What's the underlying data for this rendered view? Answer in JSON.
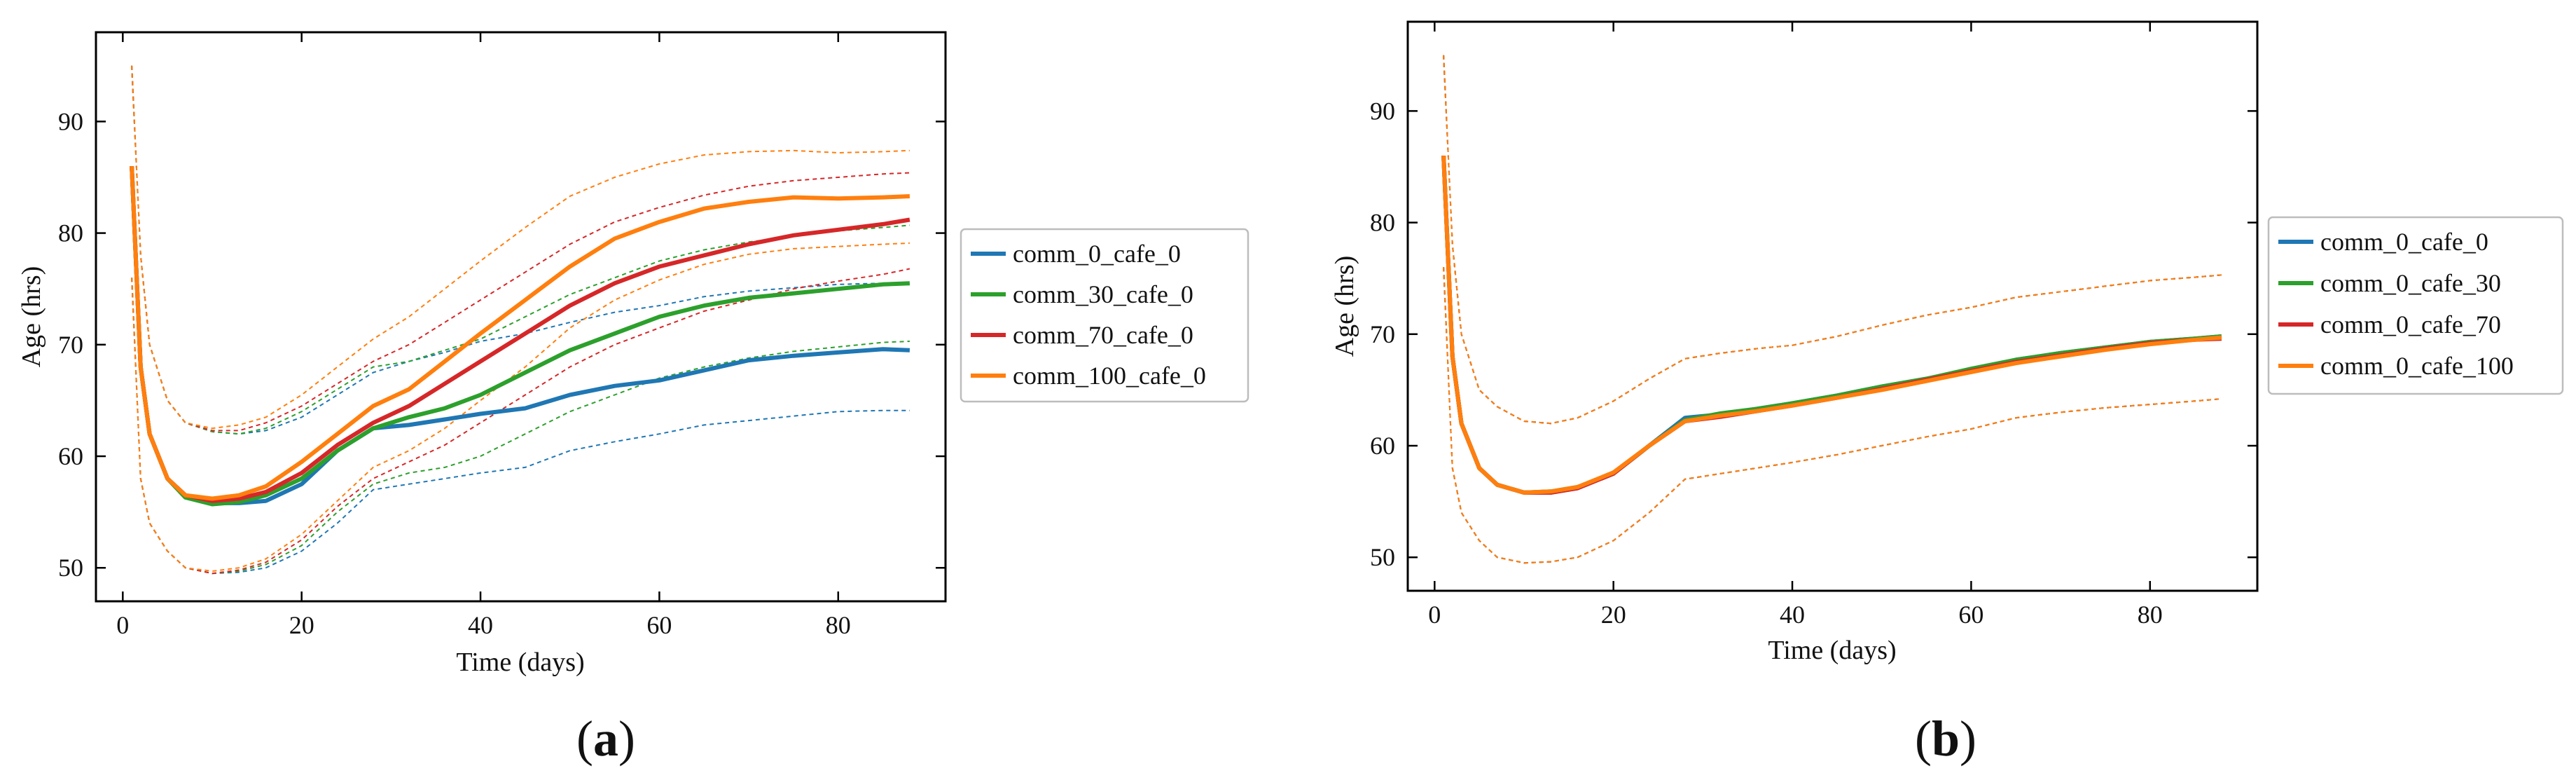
{
  "chart_data": [
    {
      "type": "line",
      "panel_label": "a",
      "xlabel": "Time (days)",
      "ylabel": "Age (hrs)",
      "xlim": [
        -3,
        92
      ],
      "ylim": [
        47,
        98
      ],
      "xticks": [
        0,
        20,
        40,
        60,
        80
      ],
      "yticks": [
        50,
        60,
        70,
        80,
        90
      ],
      "xtick_labels": [
        "0",
        "20",
        "40",
        "60",
        "80"
      ],
      "ytick_labels": [
        "50",
        "60",
        "70",
        "80",
        "90"
      ],
      "legend_position": "outside-right",
      "band_style": "dashed",
      "series": [
        {
          "name": "comm_0_cafe_0",
          "color": "#1f77b4",
          "x": [
            1,
            2,
            3,
            5,
            7,
            10,
            13,
            16,
            20,
            24,
            28,
            32,
            36,
            40,
            45,
            50,
            55,
            60,
            65,
            70,
            75,
            80,
            85,
            88
          ],
          "mean": [
            86,
            68,
            62,
            58,
            56.5,
            55.8,
            55.8,
            56,
            57.5,
            60.5,
            62.5,
            62.8,
            63.3,
            63.8,
            64.3,
            65.5,
            66.3,
            66.8,
            67.7,
            68.6,
            69,
            69.3,
            69.6,
            69.5
          ],
          "upper": [
            95,
            78,
            70,
            65,
            63,
            62.2,
            62,
            62.3,
            63.5,
            65.5,
            67.5,
            68.5,
            69.3,
            70.3,
            71,
            72,
            72.9,
            73.5,
            74.3,
            74.8,
            75.1,
            75.4,
            75.5,
            75.4
          ],
          "lower": [
            76,
            58,
            54,
            51.5,
            50,
            49.5,
            49.6,
            50,
            51.5,
            54,
            57,
            57.5,
            58,
            58.5,
            59,
            60.5,
            61.3,
            62,
            62.8,
            63.2,
            63.6,
            64,
            64.1,
            64.1
          ]
        },
        {
          "name": "comm_30_cafe_0",
          "color": "#2ca02c",
          "x": [
            1,
            2,
            3,
            5,
            7,
            10,
            13,
            16,
            20,
            24,
            28,
            32,
            36,
            40,
            45,
            50,
            55,
            60,
            65,
            70,
            75,
            80,
            85,
            88
          ],
          "mean": [
            86,
            68,
            62,
            58,
            56.3,
            55.7,
            55.9,
            56.5,
            58,
            60.5,
            62.5,
            63.5,
            64.3,
            65.5,
            67.5,
            69.5,
            71,
            72.5,
            73.5,
            74.2,
            74.6,
            75,
            75.4,
            75.5
          ],
          "upper": [
            95,
            78,
            70,
            65,
            63,
            62.2,
            62,
            62.5,
            64,
            66,
            68,
            68.5,
            69.5,
            70.5,
            72.5,
            74.5,
            76,
            77.5,
            78.5,
            79.2,
            79.7,
            80.2,
            80.5,
            80.7
          ],
          "lower": [
            76,
            58,
            54,
            51.5,
            50,
            49.5,
            49.7,
            50.3,
            52,
            55,
            57.5,
            58.5,
            59,
            60,
            62,
            64,
            65.5,
            67,
            68,
            68.8,
            69.4,
            69.8,
            70.2,
            70.3
          ]
        },
        {
          "name": "comm_70_cafe_0",
          "color": "#d62728",
          "x": [
            1,
            2,
            3,
            5,
            7,
            10,
            13,
            16,
            20,
            24,
            28,
            32,
            36,
            40,
            45,
            50,
            55,
            60,
            65,
            70,
            75,
            80,
            85,
            88
          ],
          "mean": [
            86,
            68,
            62,
            58,
            56.5,
            56,
            56.2,
            56.8,
            58.5,
            61,
            63,
            64.5,
            66.5,
            68.5,
            71,
            73.5,
            75.5,
            77,
            78,
            79,
            79.8,
            80.3,
            80.8,
            81.2
          ],
          "upper": [
            95,
            78,
            70,
            65,
            63,
            62.3,
            62.3,
            63,
            64.5,
            66.5,
            68.5,
            70,
            72,
            74,
            76.5,
            79,
            81,
            82.3,
            83.4,
            84.2,
            84.7,
            85,
            85.3,
            85.4
          ],
          "lower": [
            76,
            58,
            54,
            51.5,
            50,
            49.5,
            49.8,
            50.5,
            52.5,
            55.5,
            58,
            59.5,
            61,
            63,
            65.5,
            68,
            70,
            71.5,
            73,
            74,
            75,
            75.7,
            76.3,
            76.8
          ]
        },
        {
          "name": "comm_100_cafe_0",
          "color": "#ff7f0e",
          "x": [
            1,
            2,
            3,
            5,
            7,
            10,
            13,
            16,
            20,
            24,
            28,
            32,
            36,
            40,
            45,
            50,
            55,
            60,
            65,
            70,
            75,
            80,
            85,
            88
          ],
          "mean": [
            86,
            68,
            62,
            58,
            56.5,
            56.2,
            56.5,
            57.3,
            59.5,
            62,
            64.5,
            66,
            68.5,
            71,
            74,
            77,
            79.5,
            81,
            82.2,
            82.8,
            83.2,
            83.1,
            83.2,
            83.3
          ],
          "upper": [
            95,
            78,
            70,
            65,
            63,
            62.5,
            62.8,
            63.5,
            65.5,
            68,
            70.5,
            72.5,
            75,
            77.5,
            80.5,
            83.3,
            85,
            86.2,
            87,
            87.3,
            87.4,
            87.2,
            87.3,
            87.4
          ],
          "lower": [
            76,
            58,
            54,
            51.5,
            50,
            49.7,
            50,
            50.8,
            53,
            56,
            59,
            60.5,
            62.5,
            65,
            68,
            71.5,
            74,
            75.8,
            77.2,
            78.1,
            78.6,
            78.8,
            79,
            79.1
          ]
        }
      ]
    },
    {
      "type": "line",
      "panel_label": "b",
      "xlabel": "Time (days)",
      "ylabel": "Age (hrs)",
      "xlim": [
        -3,
        92
      ],
      "ylim": [
        47,
        98
      ],
      "xticks": [
        0,
        20,
        40,
        60,
        80
      ],
      "yticks": [
        50,
        60,
        70,
        80,
        90
      ],
      "xtick_labels": [
        "0",
        "20",
        "40",
        "60",
        "80"
      ],
      "ytick_labels": [
        "50",
        "60",
        "70",
        "80",
        "90"
      ],
      "legend_position": "outside-right",
      "band_style": "dashed",
      "series": [
        {
          "name": "comm_0_cafe_0",
          "color": "#1f77b4",
          "x": [
            1,
            2,
            3,
            5,
            7,
            10,
            13,
            16,
            20,
            24,
            28,
            32,
            36,
            40,
            45,
            50,
            55,
            60,
            65,
            70,
            75,
            80,
            85,
            88
          ],
          "mean": [
            86,
            68,
            62,
            58,
            56.5,
            55.8,
            55.8,
            56.2,
            57.5,
            60,
            62.5,
            62.8,
            63.3,
            63.8,
            64.5,
            65.3,
            66,
            66.8,
            67.7,
            68.3,
            68.8,
            69.3,
            69.6,
            69.8
          ],
          "upper": [
            95,
            78,
            70,
            65,
            63.5,
            62.2,
            62,
            62.5,
            64,
            66,
            67.8,
            68.3,
            68.7,
            69,
            69.8,
            70.8,
            71.7,
            72.4,
            73.3,
            73.8,
            74.3,
            74.8,
            75.1,
            75.3
          ],
          "lower": [
            76,
            58,
            54,
            51.5,
            50,
            49.5,
            49.6,
            50,
            51.5,
            54,
            57,
            57.5,
            58,
            58.5,
            59.2,
            60,
            60.8,
            61.5,
            62.5,
            63,
            63.4,
            63.7,
            64,
            64.2
          ]
        },
        {
          "name": "comm_0_cafe_30",
          "color": "#2ca02c",
          "x": [
            1,
            2,
            3,
            5,
            7,
            10,
            13,
            16,
            20,
            24,
            28,
            32,
            36,
            40,
            45,
            50,
            55,
            60,
            65,
            70,
            75,
            80,
            85,
            88
          ],
          "mean": [
            86,
            68,
            62,
            58,
            56.5,
            55.8,
            55.9,
            56.3,
            57.5,
            60,
            62.3,
            62.9,
            63.3,
            63.8,
            64.5,
            65.3,
            66,
            66.9,
            67.7,
            68.3,
            68.8,
            69.3,
            69.6,
            69.8
          ],
          "upper": [
            95,
            78,
            70,
            65,
            63.5,
            62.2,
            62,
            62.5,
            64,
            66,
            67.8,
            68.3,
            68.7,
            69,
            69.8,
            70.8,
            71.7,
            72.4,
            73.3,
            73.8,
            74.3,
            74.8,
            75.1,
            75.3
          ],
          "lower": [
            76,
            58,
            54,
            51.5,
            50,
            49.5,
            49.6,
            50,
            51.5,
            54,
            57,
            57.5,
            58,
            58.5,
            59.2,
            60,
            60.8,
            61.5,
            62.5,
            63,
            63.4,
            63.7,
            64,
            64.2
          ]
        },
        {
          "name": "comm_0_cafe_70",
          "color": "#d62728",
          "x": [
            1,
            2,
            3,
            5,
            7,
            10,
            13,
            16,
            20,
            24,
            28,
            32,
            36,
            40,
            45,
            50,
            55,
            60,
            65,
            70,
            75,
            80,
            85,
            88
          ],
          "mean": [
            86,
            68,
            62,
            58,
            56.5,
            55.8,
            55.8,
            56.2,
            57.5,
            60,
            62.2,
            62.6,
            63.1,
            63.6,
            64.3,
            65.1,
            65.9,
            66.7,
            67.5,
            68.1,
            68.7,
            69.2,
            69.5,
            69.6
          ],
          "upper": [
            95,
            78,
            70,
            65,
            63.5,
            62.2,
            62,
            62.5,
            64,
            66,
            67.8,
            68.3,
            68.7,
            69,
            69.8,
            70.8,
            71.7,
            72.4,
            73.3,
            73.8,
            74.3,
            74.8,
            75.1,
            75.3
          ],
          "lower": [
            76,
            58,
            54,
            51.5,
            50,
            49.5,
            49.6,
            50,
            51.5,
            54,
            57,
            57.5,
            58,
            58.5,
            59.2,
            60,
            60.8,
            61.5,
            62.5,
            63,
            63.4,
            63.7,
            64,
            64.2
          ]
        },
        {
          "name": "comm_0_cafe_100",
          "color": "#ff7f0e",
          "x": [
            1,
            2,
            3,
            5,
            7,
            10,
            13,
            16,
            20,
            24,
            28,
            32,
            36,
            40,
            45,
            50,
            55,
            60,
            65,
            70,
            75,
            80,
            85,
            88
          ],
          "mean": [
            86,
            68,
            62,
            58,
            56.5,
            55.8,
            55.9,
            56.3,
            57.6,
            60,
            62.2,
            62.7,
            63.1,
            63.6,
            64.3,
            65,
            65.8,
            66.6,
            67.4,
            68,
            68.6,
            69.1,
            69.5,
            69.7
          ],
          "upper": [
            95,
            78,
            70,
            65,
            63.5,
            62.2,
            62,
            62.5,
            64,
            66,
            67.8,
            68.3,
            68.7,
            69,
            69.8,
            70.8,
            71.7,
            72.4,
            73.3,
            73.8,
            74.3,
            74.8,
            75.1,
            75.3
          ],
          "lower": [
            76,
            58,
            54,
            51.5,
            50,
            49.5,
            49.6,
            50,
            51.5,
            54,
            57,
            57.5,
            58,
            58.5,
            59.2,
            60,
            60.8,
            61.5,
            62.5,
            63,
            63.4,
            63.7,
            64,
            64.2
          ]
        }
      ]
    }
  ]
}
